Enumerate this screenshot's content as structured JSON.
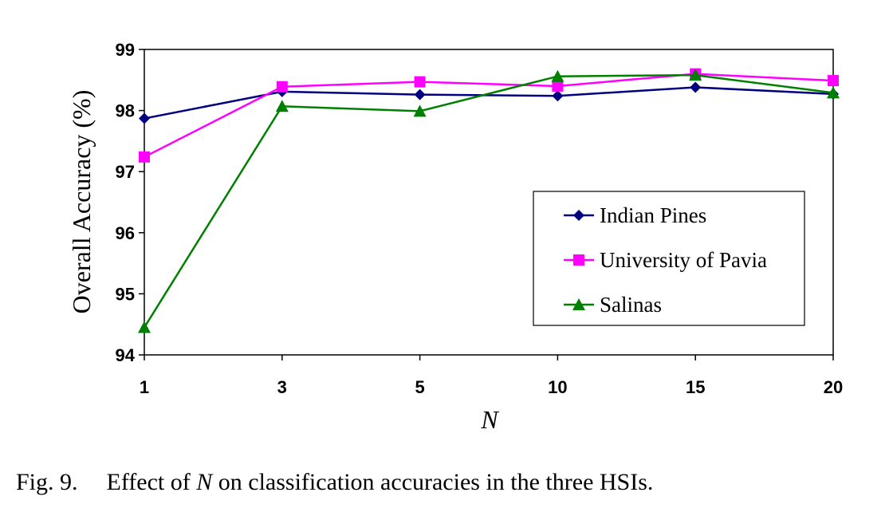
{
  "chart_data": {
    "type": "line",
    "categories": [
      "1",
      "3",
      "5",
      "10",
      "15",
      "20"
    ],
    "xlabel": "N",
    "ylabel": "Overall Accuracy (%)",
    "ylim": [
      94,
      99
    ],
    "yticks": [
      "94",
      "95",
      "96",
      "97",
      "98",
      "99"
    ],
    "grid": false,
    "legend_position": "right",
    "series": [
      {
        "name": "Indian Pines",
        "values": [
          97.87,
          98.31,
          98.26,
          98.24,
          98.38,
          98.27
        ],
        "color": "#000080",
        "marker": "diamond"
      },
      {
        "name": "University of Pavia",
        "values": [
          97.24,
          98.39,
          98.47,
          98.4,
          98.6,
          98.49
        ],
        "color": "#ff00ff",
        "marker": "square"
      },
      {
        "name": "Salinas",
        "values": [
          94.45,
          98.07,
          97.99,
          98.56,
          98.58,
          98.29
        ],
        "color": "#008000",
        "marker": "triangle"
      }
    ]
  },
  "caption": {
    "number": "Fig. 9.",
    "text_before": "Effect of ",
    "italic": "N",
    "text_after": " on classification accuracies in the three HSIs."
  }
}
